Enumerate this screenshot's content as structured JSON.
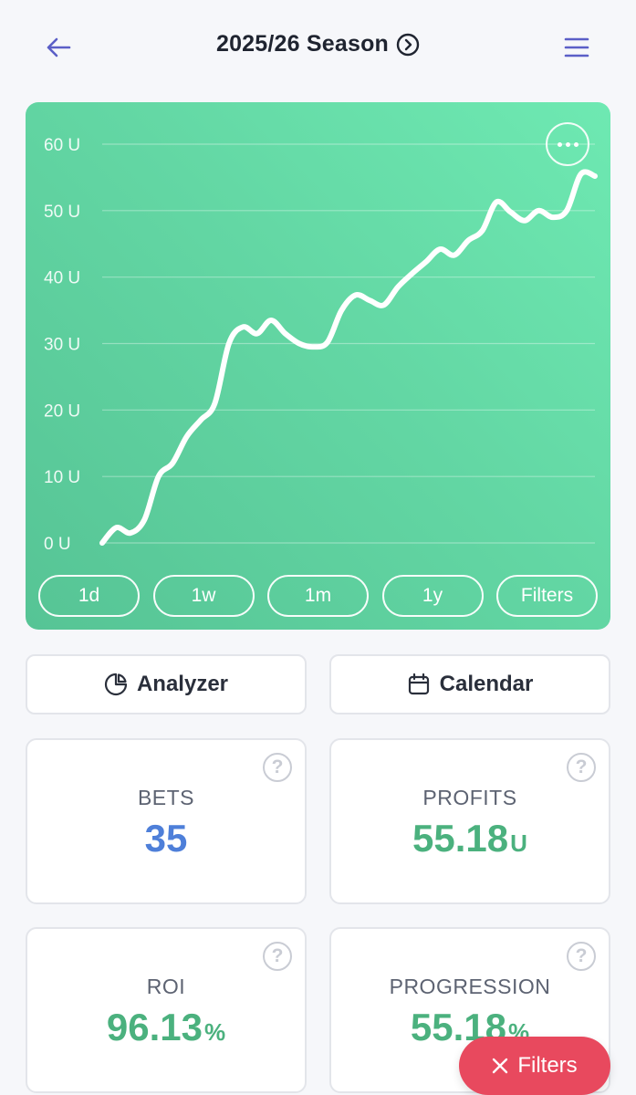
{
  "header": {
    "title": "2025/26 Season"
  },
  "chart": {
    "y_tick_labels": [
      "60 U",
      "50 U",
      "40 U",
      "30 U",
      "20 U",
      "10 U",
      "0 U"
    ],
    "range_buttons": [
      "1d",
      "1w",
      "1m",
      "1y",
      "Filters"
    ]
  },
  "chart_data": {
    "type": "line",
    "title": "",
    "xlabel": "",
    "ylabel": "",
    "ylim": [
      0,
      60
    ],
    "y_ticks": [
      0,
      10,
      20,
      30,
      40,
      50,
      60
    ],
    "y_tick_labels": [
      "0 U",
      "10 U",
      "20 U",
      "30 U",
      "40 U",
      "50 U",
      "60 U"
    ],
    "grid": true,
    "series": [
      {
        "values": [
          0,
          2.3,
          1.5,
          3.5,
          10,
          12,
          16,
          18.5,
          21,
          30,
          32.5,
          31.5,
          33.5,
          31.5,
          30,
          29.5,
          30.2,
          35,
          37.3,
          36.5,
          35.8,
          38.5,
          40.5,
          42.3,
          44.2,
          43.3,
          45.5,
          47,
          51.3,
          49.8,
          48.5,
          50,
          49,
          50,
          55.5,
          55.2
        ]
      }
    ]
  },
  "tools": {
    "analyzer_label": "Analyzer",
    "calendar_label": "Calendar"
  },
  "stats": {
    "bets": {
      "label": "BETS",
      "value": "35"
    },
    "profits": {
      "label": "PROFITS",
      "value": "55.18",
      "unit": "U"
    },
    "roi": {
      "label": "ROI",
      "value": "96.13",
      "unit": "%"
    },
    "progression": {
      "label": "PROGRESSION",
      "value": "55.18",
      "unit": "%"
    }
  },
  "fab": {
    "label": "Filters"
  },
  "colors": {
    "accent": "#5b5fc7",
    "blue_value": "#4e7fd9",
    "green_value": "#4bb17e",
    "fab": "#e8495e"
  }
}
